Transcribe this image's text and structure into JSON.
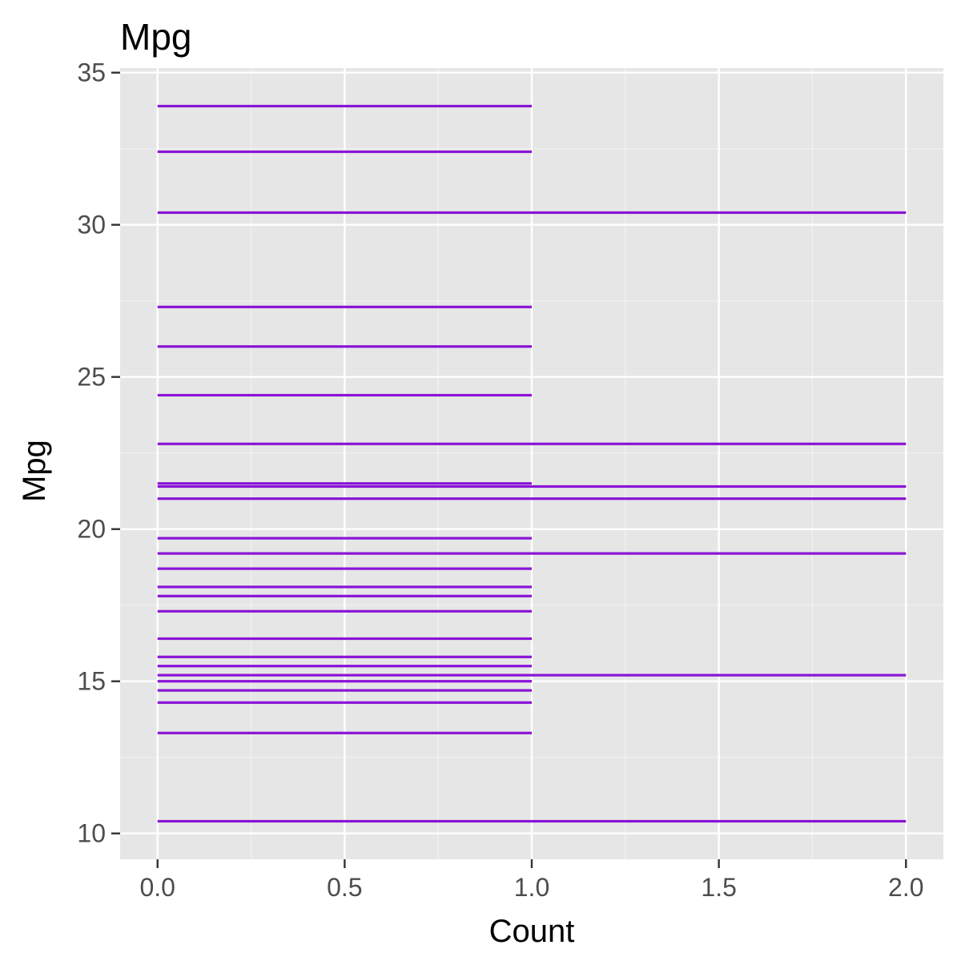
{
  "chart_data": {
    "type": "bar",
    "orientation": "horizontal",
    "title": "Mpg",
    "xlabel": "Count",
    "ylabel": "Mpg",
    "xlim": [
      -0.1,
      2.1
    ],
    "ylim": [
      9.15,
      35.15
    ],
    "x_ticks": [
      0,
      0.5,
      1,
      1.5,
      2
    ],
    "x_tick_labels": [
      "0.0",
      "0.5",
      "1.0",
      "1.5",
      "2.0"
    ],
    "y_ticks": [
      10,
      15,
      20,
      25,
      30,
      35
    ],
    "y_tick_labels": [
      "10",
      "15",
      "20",
      "25",
      "30",
      "35"
    ],
    "grid": true,
    "legend": "none",
    "bar_color": "#8A14D6",
    "panel_background": "#E6E6E6",
    "categories": [
      10.4,
      13.3,
      14.3,
      14.7,
      15.0,
      15.2,
      15.5,
      15.8,
      16.4,
      17.3,
      17.8,
      18.1,
      18.7,
      19.2,
      19.7,
      21.0,
      21.4,
      21.5,
      22.8,
      24.4,
      26.0,
      27.3,
      30.4,
      32.4,
      33.9
    ],
    "values": [
      2,
      1,
      1,
      1,
      1,
      2,
      1,
      1,
      1,
      1,
      1,
      1,
      1,
      2,
      1,
      2,
      2,
      1,
      2,
      1,
      1,
      1,
      2,
      1,
      1
    ]
  }
}
